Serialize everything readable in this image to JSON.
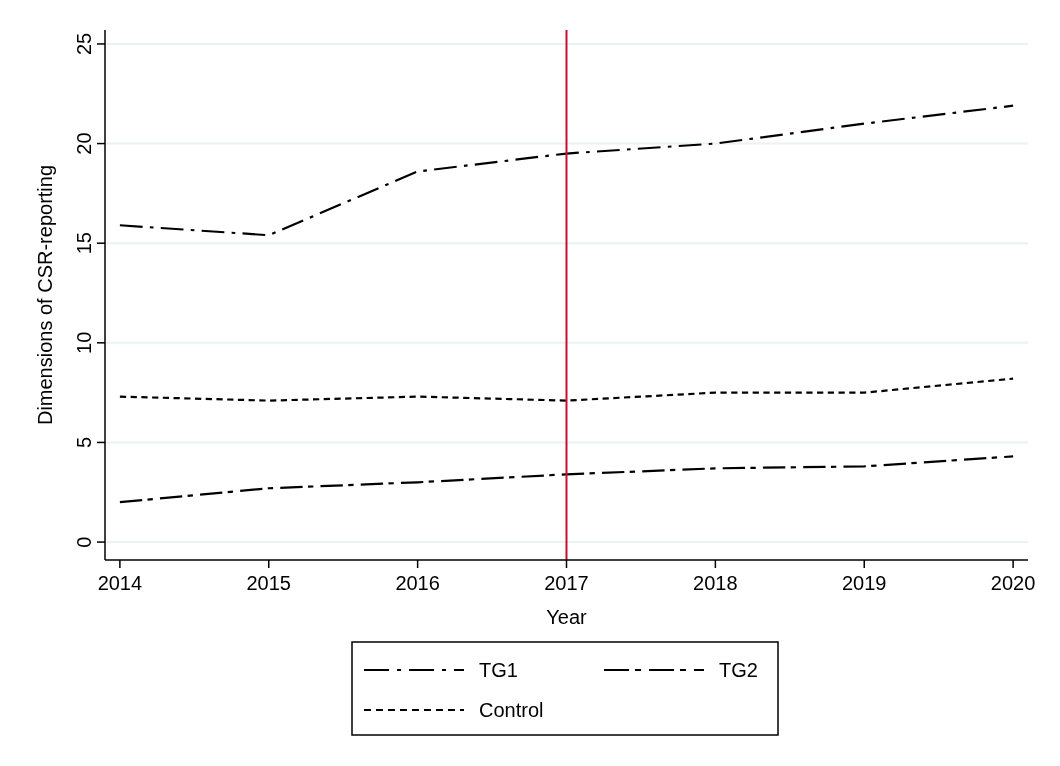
{
  "chart_data": {
    "type": "line",
    "xlabel": "Year",
    "ylabel": "Dimensions of CSR-reporting",
    "x": [
      2014,
      2015,
      2016,
      2017,
      2018,
      2019,
      2020
    ],
    "series": [
      {
        "name": "TG1",
        "color": "#000000",
        "line_style": "dashed",
        "values": [
          15.9,
          15.4,
          18.6,
          19.5,
          20,
          21,
          21.9
        ]
      },
      {
        "name": "TG2",
        "color": "#000000",
        "line_style": "dashed",
        "values": [
          2,
          2.7,
          3,
          3.4,
          3.7,
          3.8,
          4.3
        ]
      },
      {
        "name": "Control",
        "color": "#000000",
        "line_style": "dotted",
        "values": [
          7.3,
          7.1,
          7.3,
          7.1,
          7.5,
          7.5,
          8.2
        ]
      }
    ],
    "xlim": [
      2013.9,
      2020.1
    ],
    "ylim": [
      -0.9,
      25.7
    ],
    "xticks": [
      2014,
      2015,
      2016,
      2017,
      2018,
      2019,
      2020
    ],
    "yticks": [
      0,
      5,
      10,
      15,
      20,
      25
    ],
    "grid": "y",
    "legend": "bottom",
    "ref_lines": [
      {
        "axis": "x",
        "value": 2017,
        "color": "#c8102e"
      }
    ]
  }
}
